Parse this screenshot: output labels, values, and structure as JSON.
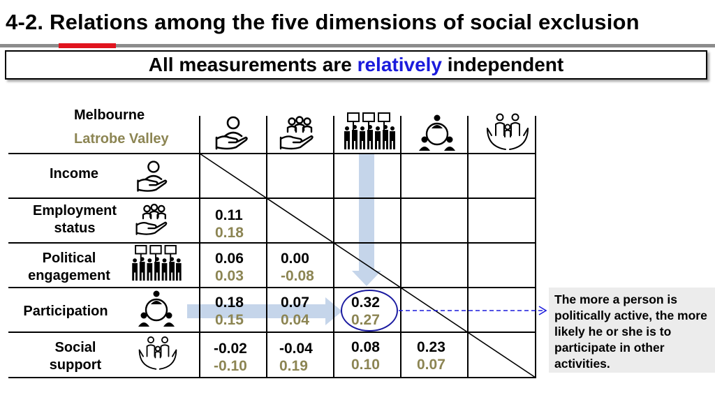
{
  "title": "4-2. Relations among the five dimensions of social exclusion",
  "banner": {
    "before": "All measurements are ",
    "highlight": "relatively",
    "after": " independent"
  },
  "legend": {
    "melbourne": "Melbourne",
    "latrobe": "Latrobe Valley"
  },
  "colors": {
    "latrobe": "#8c8553",
    "highlight": "#1a1adc",
    "accent_red": "#e0141e",
    "arrow": "#c5d5ea",
    "circle": "#1a1aa0"
  },
  "rows": [
    {
      "label_l1": "Income",
      "label_l2": "",
      "icon": "hand-person-icon"
    },
    {
      "label_l1": "Employment",
      "label_l2": "status",
      "icon": "hand-group-icon"
    },
    {
      "label_l1": "Political",
      "label_l2": "engagement",
      "icon": "protest-crowd-icon"
    },
    {
      "label_l1": "Participation",
      "label_l2": "",
      "icon": "network-people-icon"
    },
    {
      "label_l1": "Social",
      "label_l2": "support",
      "icon": "family-hands-icon"
    }
  ],
  "cells": {
    "emp_inc": {
      "m": "0.11",
      "l": "0.18"
    },
    "pol_inc": {
      "m": "0.06",
      "l": "0.03"
    },
    "pol_emp": {
      "m": "0.00",
      "l": "-0.08"
    },
    "par_inc": {
      "m": "0.18",
      "l": "0.15"
    },
    "par_emp": {
      "m": "0.07",
      "l": "0.04"
    },
    "par_pol": {
      "m": "0.32",
      "l": "0.27"
    },
    "soc_inc": {
      "m": "-0.02",
      "l": "-0.10"
    },
    "soc_emp": {
      "m": "-0.04",
      "l": "0.19"
    },
    "soc_pol": {
      "m": "0.08",
      "l": "0.10"
    },
    "soc_par": {
      "m": "0.23",
      "l": "0.07"
    }
  },
  "note": "The more a person  is politically active, the more likely he or she is to participate in other activities."
}
